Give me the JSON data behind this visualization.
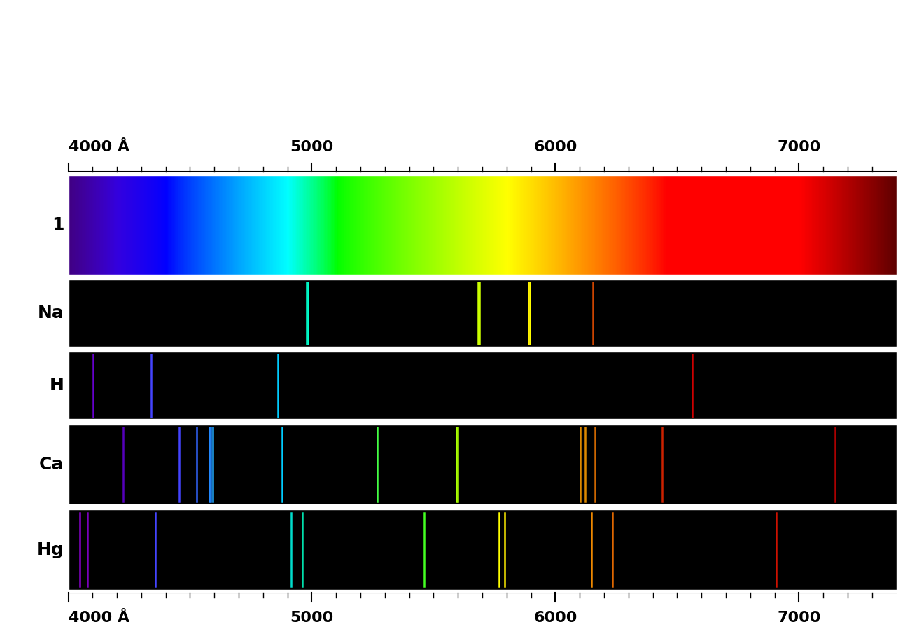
{
  "wl_min": 4000,
  "wl_max": 7400,
  "background_color": "#ffffff",
  "Na_lines": [
    {
      "wl": 4978,
      "color": "#00ffcc"
    },
    {
      "wl": 4983,
      "color": "#00ffcc"
    },
    {
      "wl": 5683,
      "color": "#ccff00"
    },
    {
      "wl": 5688,
      "color": "#ccff00"
    },
    {
      "wl": 5890,
      "color": "#ffee00"
    },
    {
      "wl": 5896,
      "color": "#ffff00"
    },
    {
      "wl": 6154,
      "color": "#cc4400"
    }
  ],
  "H_lines": [
    {
      "wl": 4102,
      "color": "#6600cc"
    },
    {
      "wl": 4340,
      "color": "#4444ff"
    },
    {
      "wl": 4861,
      "color": "#00ccff"
    },
    {
      "wl": 6563,
      "color": "#cc0000"
    }
  ],
  "Ca_lines": [
    {
      "wl": 4227,
      "color": "#5500bb"
    },
    {
      "wl": 4455,
      "color": "#4444ff"
    },
    {
      "wl": 4526,
      "color": "#3366ff"
    },
    {
      "wl": 4578,
      "color": "#2288ff"
    },
    {
      "wl": 4585,
      "color": "#2288ff"
    },
    {
      "wl": 4594,
      "color": "#22aaff"
    },
    {
      "wl": 4878,
      "color": "#00ccff"
    },
    {
      "wl": 5270,
      "color": "#44ff44"
    },
    {
      "wl": 5594,
      "color": "#aaff00"
    },
    {
      "wl": 5598,
      "color": "#aaff00"
    },
    {
      "wl": 6103,
      "color": "#dd8800"
    },
    {
      "wl": 6122,
      "color": "#dd8800"
    },
    {
      "wl": 6162,
      "color": "#cc6600"
    },
    {
      "wl": 6439,
      "color": "#cc2200"
    },
    {
      "wl": 7148,
      "color": "#aa0000"
    }
  ],
  "Hg_lines": [
    {
      "wl": 4047,
      "color": "#8800cc"
    },
    {
      "wl": 4078,
      "color": "#7700bb"
    },
    {
      "wl": 4358,
      "color": "#4444ff"
    },
    {
      "wl": 4916,
      "color": "#00ddcc"
    },
    {
      "wl": 4960,
      "color": "#00ddaa"
    },
    {
      "wl": 5461,
      "color": "#44ff22"
    },
    {
      "wl": 5770,
      "color": "#ffff00"
    },
    {
      "wl": 5791,
      "color": "#ffee00"
    },
    {
      "wl": 6149,
      "color": "#ee8800"
    },
    {
      "wl": 6234,
      "color": "#dd6600"
    },
    {
      "wl": 6907,
      "color": "#cc1100"
    }
  ],
  "major_ticks": [
    4000,
    5000,
    6000,
    7000
  ],
  "minor_ticks": [
    4100,
    4200,
    4300,
    4400,
    4500,
    4600,
    4700,
    4800,
    4900,
    5100,
    5200,
    5300,
    5400,
    5500,
    5600,
    5700,
    5800,
    5900,
    6100,
    6200,
    6300,
    6400,
    6500,
    6600,
    6700,
    6800,
    6900,
    7100,
    7200,
    7300
  ],
  "label_fontsize": 18,
  "tick_label_fontsize": 16
}
